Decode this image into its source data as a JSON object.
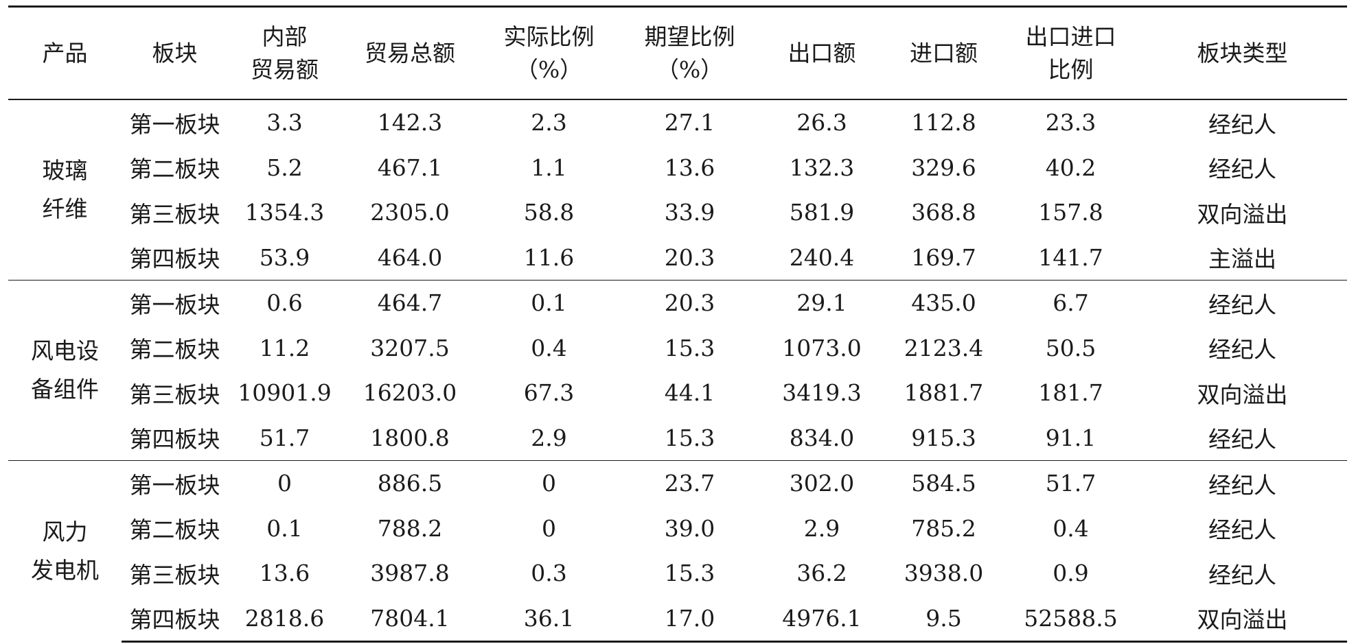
{
  "headers": [
    [
      "产品"
    ],
    [
      "板块"
    ],
    [
      "内部",
      "贸易额"
    ],
    [
      "贸易总额"
    ],
    [
      "实际比例",
      "（%）"
    ],
    [
      "期望比例",
      "（%）"
    ],
    [
      "出口额"
    ],
    [
      "进口额"
    ],
    [
      "出口进口",
      "比例"
    ],
    [
      "板块类型"
    ]
  ],
  "groups": [
    {
      "product": [
        "玻璃",
        "纤维"
      ],
      "rows": [
        [
          "第一板块",
          "3.3",
          "142.3",
          "2.3",
          "27.1",
          "26.3",
          "112.8",
          "23.3",
          "经纪人"
        ],
        [
          "第二板块",
          "5.2",
          "467.1",
          "1.1",
          "13.6",
          "132.3",
          "329.6",
          "40.2",
          "经纪人"
        ],
        [
          "第三板块",
          "1354.3",
          "2305.0",
          "58.8",
          "33.9",
          "581.9",
          "368.8",
          "157.8",
          "双向溢出"
        ],
        [
          "第四板块",
          "53.9",
          "464.0",
          "11.6",
          "20.3",
          "240.4",
          "169.7",
          "141.7",
          "主溢出"
        ]
      ]
    },
    {
      "product": [
        "风电设",
        "备组件"
      ],
      "rows": [
        [
          "第一板块",
          "0.6",
          "464.7",
          "0.1",
          "20.3",
          "29.1",
          "435.0",
          "6.7",
          "经纪人"
        ],
        [
          "第二板块",
          "11.2",
          "3207.5",
          "0.4",
          "15.3",
          "1073.0",
          "2123.4",
          "50.5",
          "经纪人"
        ],
        [
          "第三板块",
          "10901.9",
          "16203.0",
          "67.3",
          "44.1",
          "3419.3",
          "1881.7",
          "181.7",
          "双向溢出"
        ],
        [
          "第四板块",
          "51.7",
          "1800.8",
          "2.9",
          "15.3",
          "834.0",
          "915.3",
          "91.1",
          "经纪人"
        ]
      ]
    },
    {
      "product": [
        "风力",
        "发电机"
      ],
      "rows": [
        [
          "第一板块",
          "0",
          "886.5",
          "0",
          "23.7",
          "302.0",
          "584.5",
          "51.7",
          "经纪人"
        ],
        [
          "第二板块",
          "0.1",
          "788.2",
          "0",
          "39.0",
          "2.9",
          "785.2",
          "0.4",
          "经纪人"
        ],
        [
          "第三板块",
          "13.6",
          "3987.8",
          "0.3",
          "15.3",
          "36.2",
          "3938.0",
          "0.9",
          "经纪人"
        ],
        [
          "第四板块",
          "2818.6",
          "7804.1",
          "36.1",
          "17.0",
          "4976.1",
          "9.5",
          "52588.5",
          "双向溢出"
        ]
      ]
    }
  ]
}
